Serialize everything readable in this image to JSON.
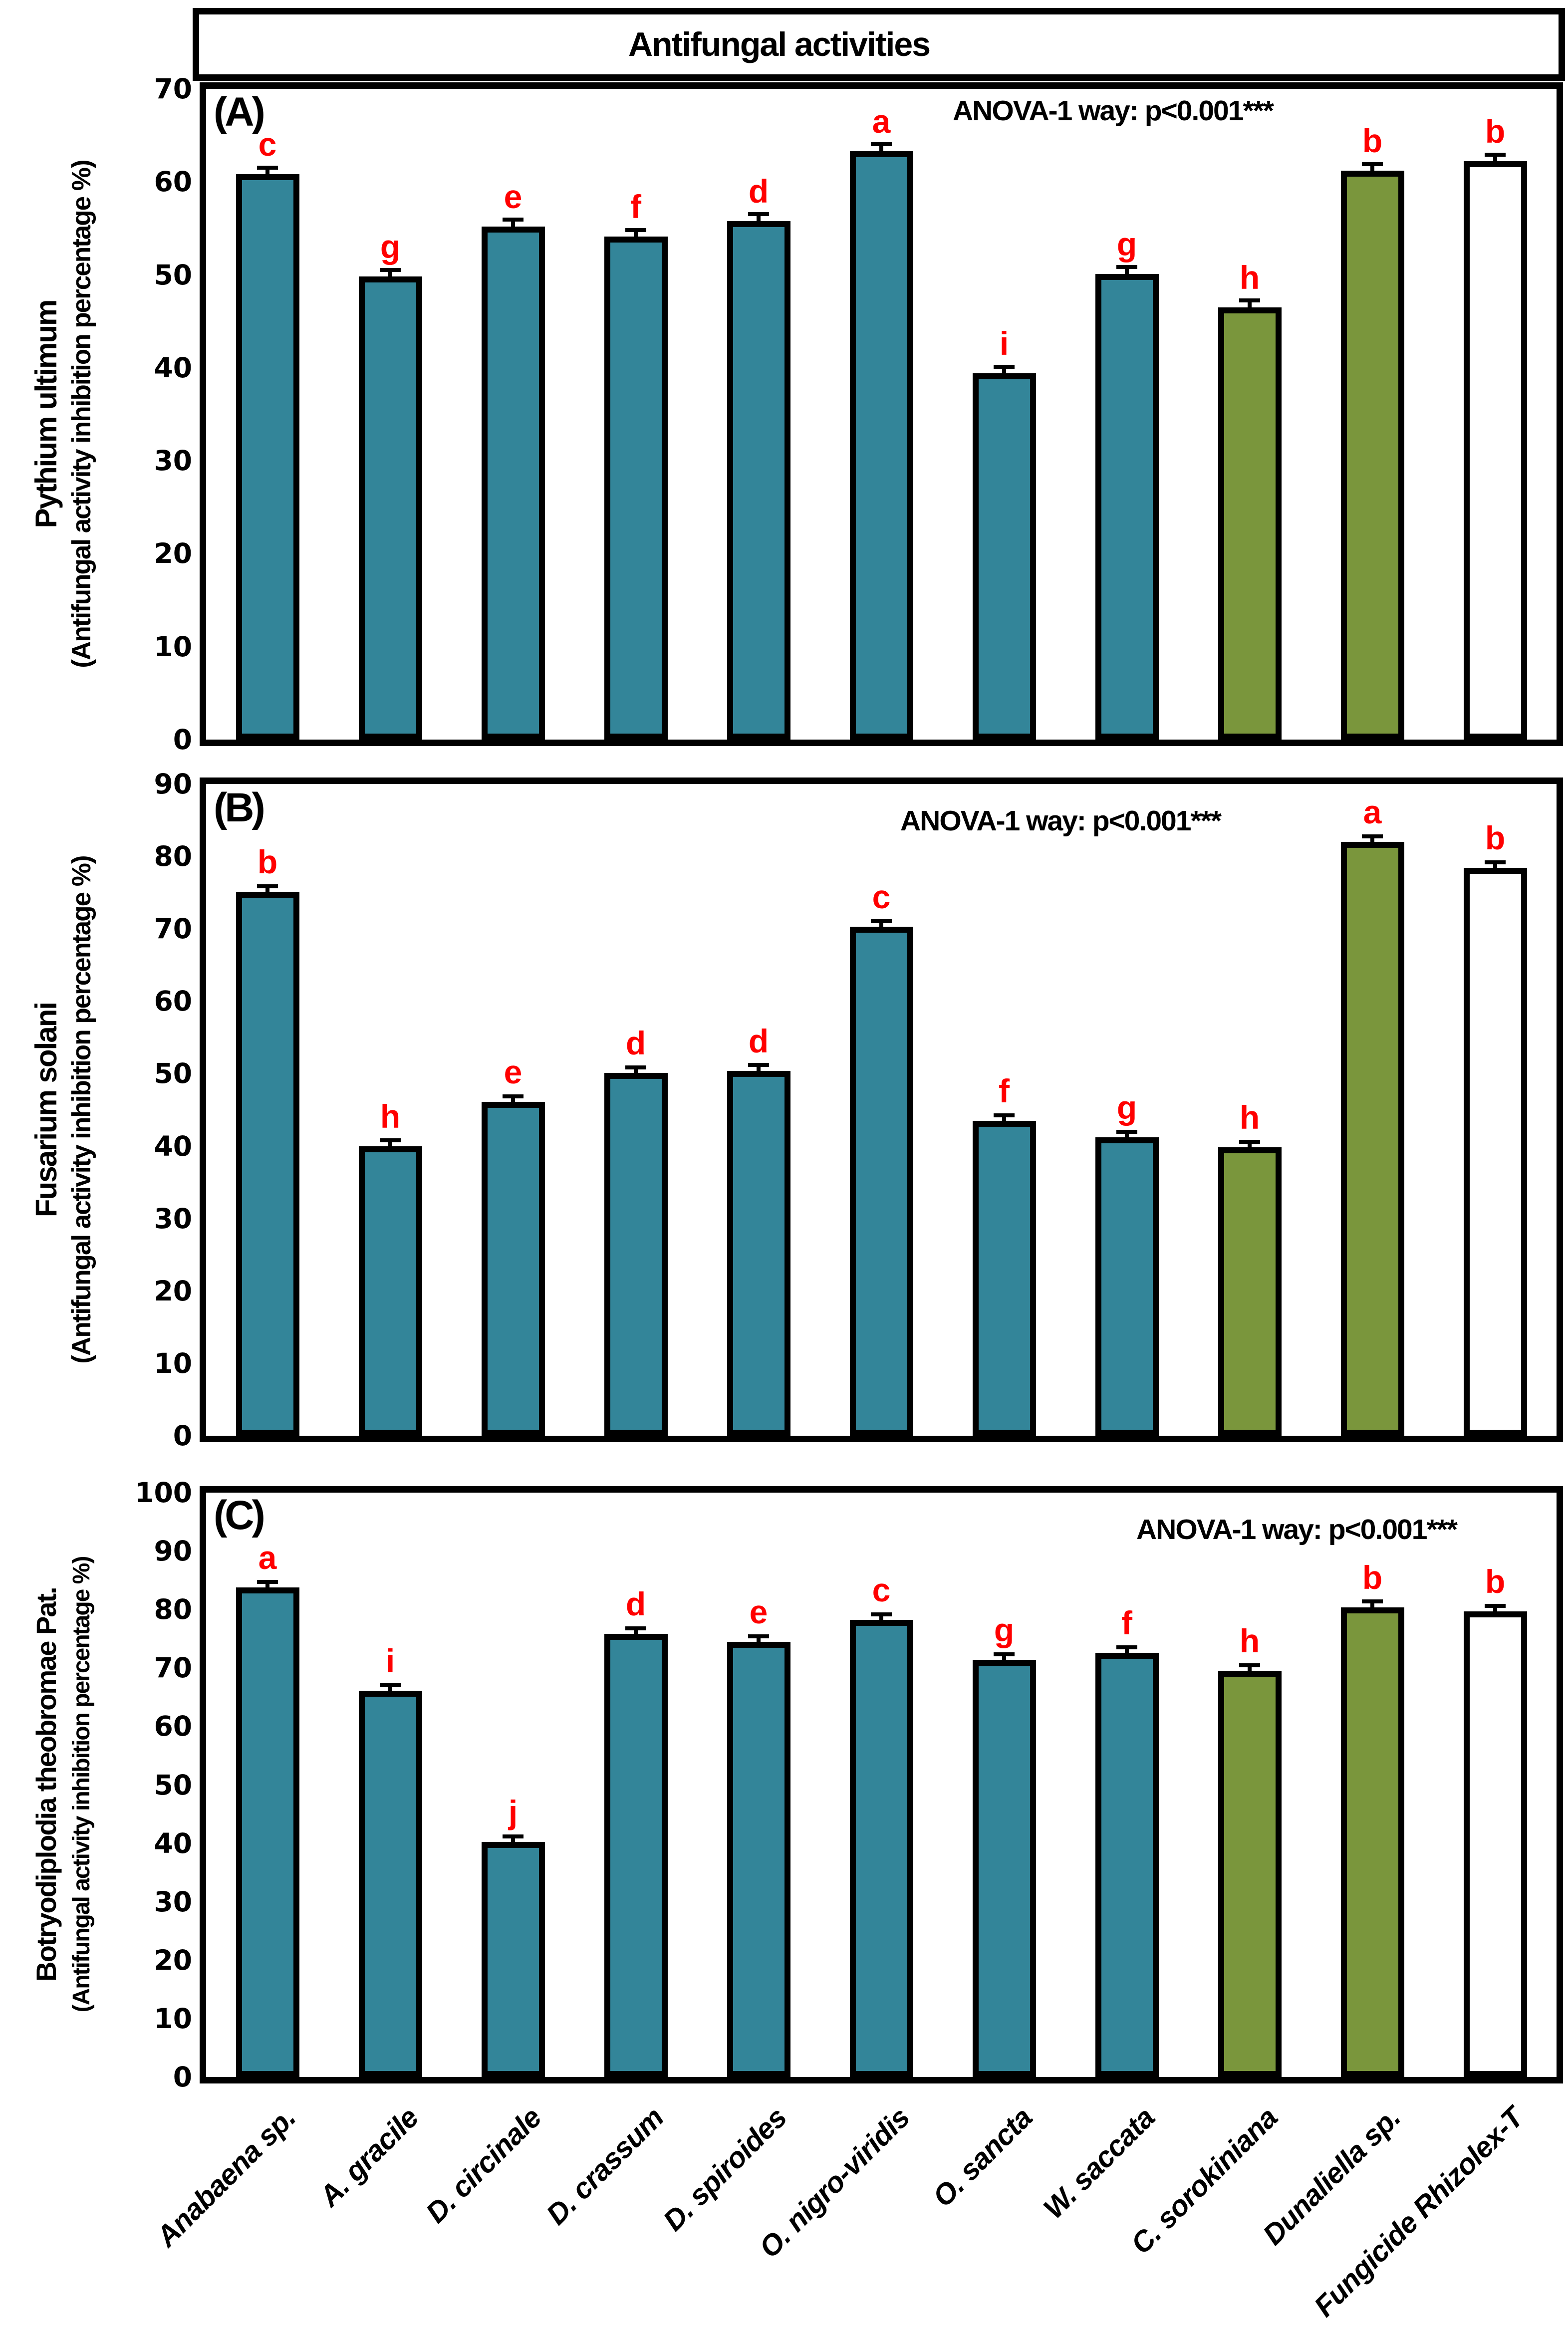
{
  "title": "Antifungal activities",
  "categories": [
    "Anabaena sp.",
    "A. gracile",
    "D. circinale",
    "D. crassum",
    "D. spiroides",
    "O. nigro-viridis",
    "O. sancta",
    "W. saccata",
    "C. sorokiniana",
    "Dunaliella sp.",
    "Fungicide Rhizolex-T"
  ],
  "colors": {
    "teal": "#338599",
    "olive": "#7A963C",
    "white_bar": "#FFFFFF",
    "bar_border": "#000000",
    "letter_red": "#FF0000"
  },
  "bar_color_keys": [
    "teal",
    "teal",
    "teal",
    "teal",
    "teal",
    "teal",
    "teal",
    "teal",
    "olive",
    "olive",
    "white_bar"
  ],
  "chart_data": [
    {
      "type": "bar",
      "panel_label": "(A)",
      "ylabel_line1": "Pythium ultimum",
      "ylabel_line2": "(Antifungal activity inhibition percentage %)",
      "anova": "ANOVA-1 way: p<0.001***",
      "ylim": [
        0,
        70
      ],
      "ytick_step": 10,
      "grid": false,
      "legend": "none",
      "categories": [
        "Anabaena sp.",
        "A. gracile",
        "D. circinale",
        "D. crassum",
        "D. spiroides",
        "O. nigro-viridis",
        "O. sancta",
        "W. saccata",
        "C. sorokiniana",
        "Dunaliella sp.",
        "Fungicide Rhizolex-T"
      ],
      "values": [
        60.8,
        49.8,
        55.2,
        54.1,
        55.8,
        63.3,
        39.4,
        50.1,
        46.5,
        61.2,
        62.2
      ],
      "sig_letters": [
        "c",
        "g",
        "e",
        "f",
        "d",
        "a",
        "i",
        "g",
        "h",
        "b",
        "b"
      ],
      "error_bar": 0.5
    },
    {
      "type": "bar",
      "panel_label": "(B)",
      "ylabel_line1": "Fusarium solani",
      "ylabel_line2": "(Antifungal activity inhibition percentage %)",
      "anova": "ANOVA-1 way: p<0.001***",
      "ylim": [
        0,
        90
      ],
      "ytick_step": 10,
      "grid": false,
      "legend": "none",
      "categories": [
        "Anabaena sp.",
        "A. gracile",
        "D. circinale",
        "D. crassum",
        "D. spiroides",
        "O. nigro-viridis",
        "O. sancta",
        "W. saccata",
        "C. sorokiniana",
        "Dunaliella sp.",
        "Fungicide Rhizolex-T"
      ],
      "values": [
        75.1,
        40.0,
        46.1,
        50.1,
        50.4,
        70.3,
        43.5,
        41.2,
        39.8,
        82.0,
        78.4
      ],
      "sig_letters": [
        "b",
        "h",
        "e",
        "d",
        "d",
        "c",
        "f",
        "g",
        "h",
        "a",
        "b"
      ],
      "error_bar": 0.5
    },
    {
      "type": "bar",
      "panel_label": "(C)",
      "ylabel_line1": "Botryodiplodia theobromae Pat.",
      "ylabel_line2": "(Antifungal activity inhibition percentage %)",
      "anova": "ANOVA-1 way: p<0.001***",
      "ylim": [
        0,
        100
      ],
      "ytick_step": 10,
      "grid": false,
      "legend": "none",
      "categories": [
        "Anabaena sp.",
        "A. gracile",
        "D. circinale",
        "D. crassum",
        "D. spiroides",
        "O. nigro-viridis",
        "O. sancta",
        "W. saccata",
        "C. sorokiniana",
        "Dunaliella sp.",
        "Fungicide Rhizolex-T"
      ],
      "values": [
        83.8,
        66.1,
        40.2,
        75.8,
        74.5,
        78.2,
        71.4,
        72.6,
        69.5,
        80.4,
        79.7
      ],
      "sig_letters": [
        "a",
        "i",
        "j",
        "d",
        "e",
        "c",
        "g",
        "f",
        "h",
        "b",
        "b"
      ],
      "error_bar": 0.6
    }
  ]
}
